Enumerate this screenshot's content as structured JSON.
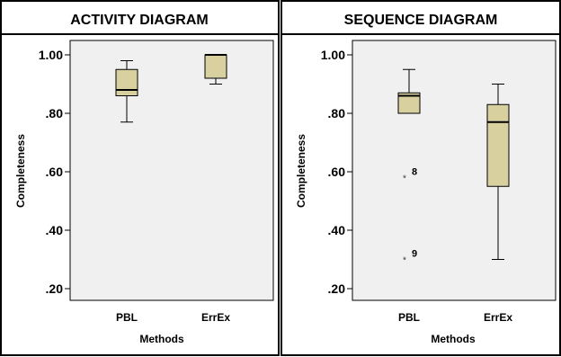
{
  "chart_data": [
    {
      "type": "boxplot",
      "title": "ACTIVITY DIAGRAM",
      "xlabel": "Methods",
      "ylabel": "Completeness",
      "ylim": [
        0.2,
        1.0
      ],
      "yticks": [
        1.0,
        0.8,
        0.6,
        0.4,
        0.2
      ],
      "ytick_labels": [
        "1.00",
        ".80",
        ".60",
        ".40",
        ".20"
      ],
      "categories": [
        "PBL",
        "ErrEx"
      ],
      "boxes": [
        {
          "category": "PBL",
          "whisker_low": 0.77,
          "q1": 0.86,
          "median": 0.88,
          "q3": 0.95,
          "whisker_high": 0.98,
          "outliers": []
        },
        {
          "category": "ErrEx",
          "whisker_low": 0.9,
          "q1": 0.92,
          "median": 1.0,
          "q3": 1.0,
          "whisker_high": 1.0,
          "outliers": []
        }
      ],
      "box_color": "#d9d0a0",
      "plot_background": "#f0f0f0",
      "grid": false
    },
    {
      "type": "boxplot",
      "title": "SEQUENCE DIAGRAM",
      "xlabel": "Methods",
      "ylabel": "Completeness",
      "ylim": [
        0.2,
        1.0
      ],
      "yticks": [
        1.0,
        0.8,
        0.6,
        0.4,
        0.2
      ],
      "ytick_labels": [
        "1.00",
        ".80",
        ".60",
        ".40",
        ".20"
      ],
      "categories": [
        "PBL",
        "ErrEx"
      ],
      "boxes": [
        {
          "category": "PBL",
          "whisker_low": 0.8,
          "q1": 0.8,
          "median": 0.86,
          "q3": 0.87,
          "whisker_high": 0.95,
          "outliers": [
            {
              "value": 0.58,
              "label": "8"
            },
            {
              "value": 0.3,
              "label": "9"
            }
          ]
        },
        {
          "category": "ErrEx",
          "whisker_low": 0.3,
          "q1": 0.55,
          "median": 0.77,
          "q3": 0.83,
          "whisker_high": 0.9,
          "outliers": []
        }
      ],
      "box_color": "#d9d0a0",
      "plot_background": "#f0f0f0",
      "grid": false
    }
  ]
}
